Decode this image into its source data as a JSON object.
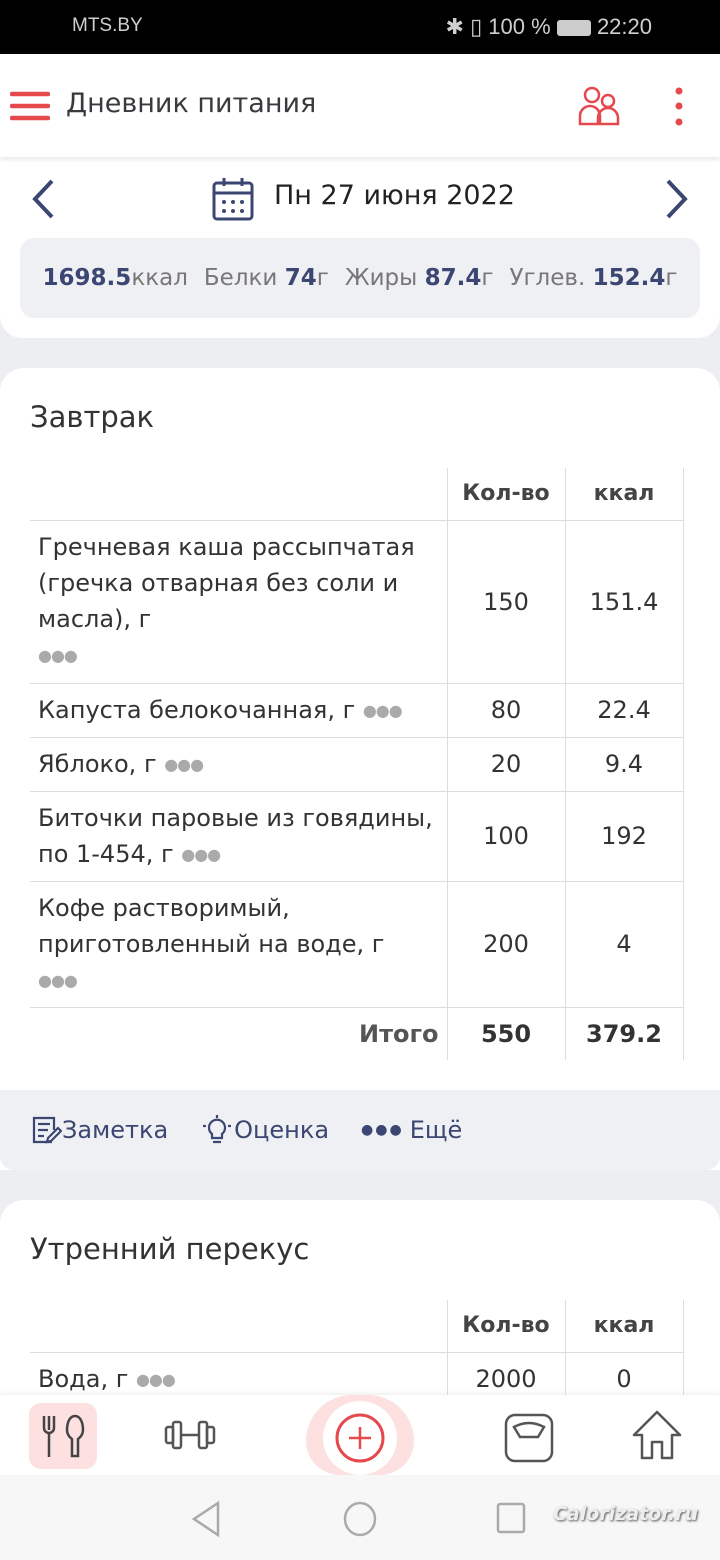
{
  "status_bar": {
    "carrier": "MTS.BY",
    "battery": "100 %",
    "time": "22:20"
  },
  "app_bar": {
    "title": "Дневник питания"
  },
  "date_nav": {
    "date": "Пн 27 июня 2022"
  },
  "summary": {
    "kcal": "1698.5",
    "kcal_unit": "ккал",
    "protein_label": "Белки",
    "protein": "74",
    "fat_label": "Жиры",
    "fat": "87.4",
    "carbs_label": "Углев.",
    "carbs": "152.4",
    "unit": "г"
  },
  "meals": [
    {
      "title": "Завтрак",
      "headers": {
        "qty": "Кол-во",
        "kcal": "ккал"
      },
      "rows": [
        {
          "name": "Гречневая каша рассыпчатая (гречка отварная без соли и масла), г",
          "qty": "150",
          "kcal": "151.4"
        },
        {
          "name": "Капуста белокочанная, г",
          "qty": "80",
          "kcal": "22.4"
        },
        {
          "name": "Яблоко, г",
          "qty": "20",
          "kcal": "9.4"
        },
        {
          "name": "Биточки паровые из говядины, по 1-454, г",
          "qty": "100",
          "kcal": "192"
        },
        {
          "name": "Кофе растворимый, приготовленный на воде, г",
          "qty": "200",
          "kcal": "4"
        }
      ],
      "total": {
        "label": "Итого",
        "qty": "550",
        "kcal": "379.2"
      },
      "actions": {
        "note": "Заметка",
        "rate": "Оценка",
        "more": "Ещё"
      }
    },
    {
      "title": "Утренний перекус",
      "headers": {
        "qty": "Кол-во",
        "kcal": "ккал"
      },
      "rows": [
        {
          "name": "Вода, г",
          "qty": "2000",
          "kcal": "0"
        }
      ]
    }
  ],
  "watermark": "Calorizator.ru",
  "colors": {
    "accent_red": "#e5484d",
    "accent_blue": "#3b4672"
  }
}
